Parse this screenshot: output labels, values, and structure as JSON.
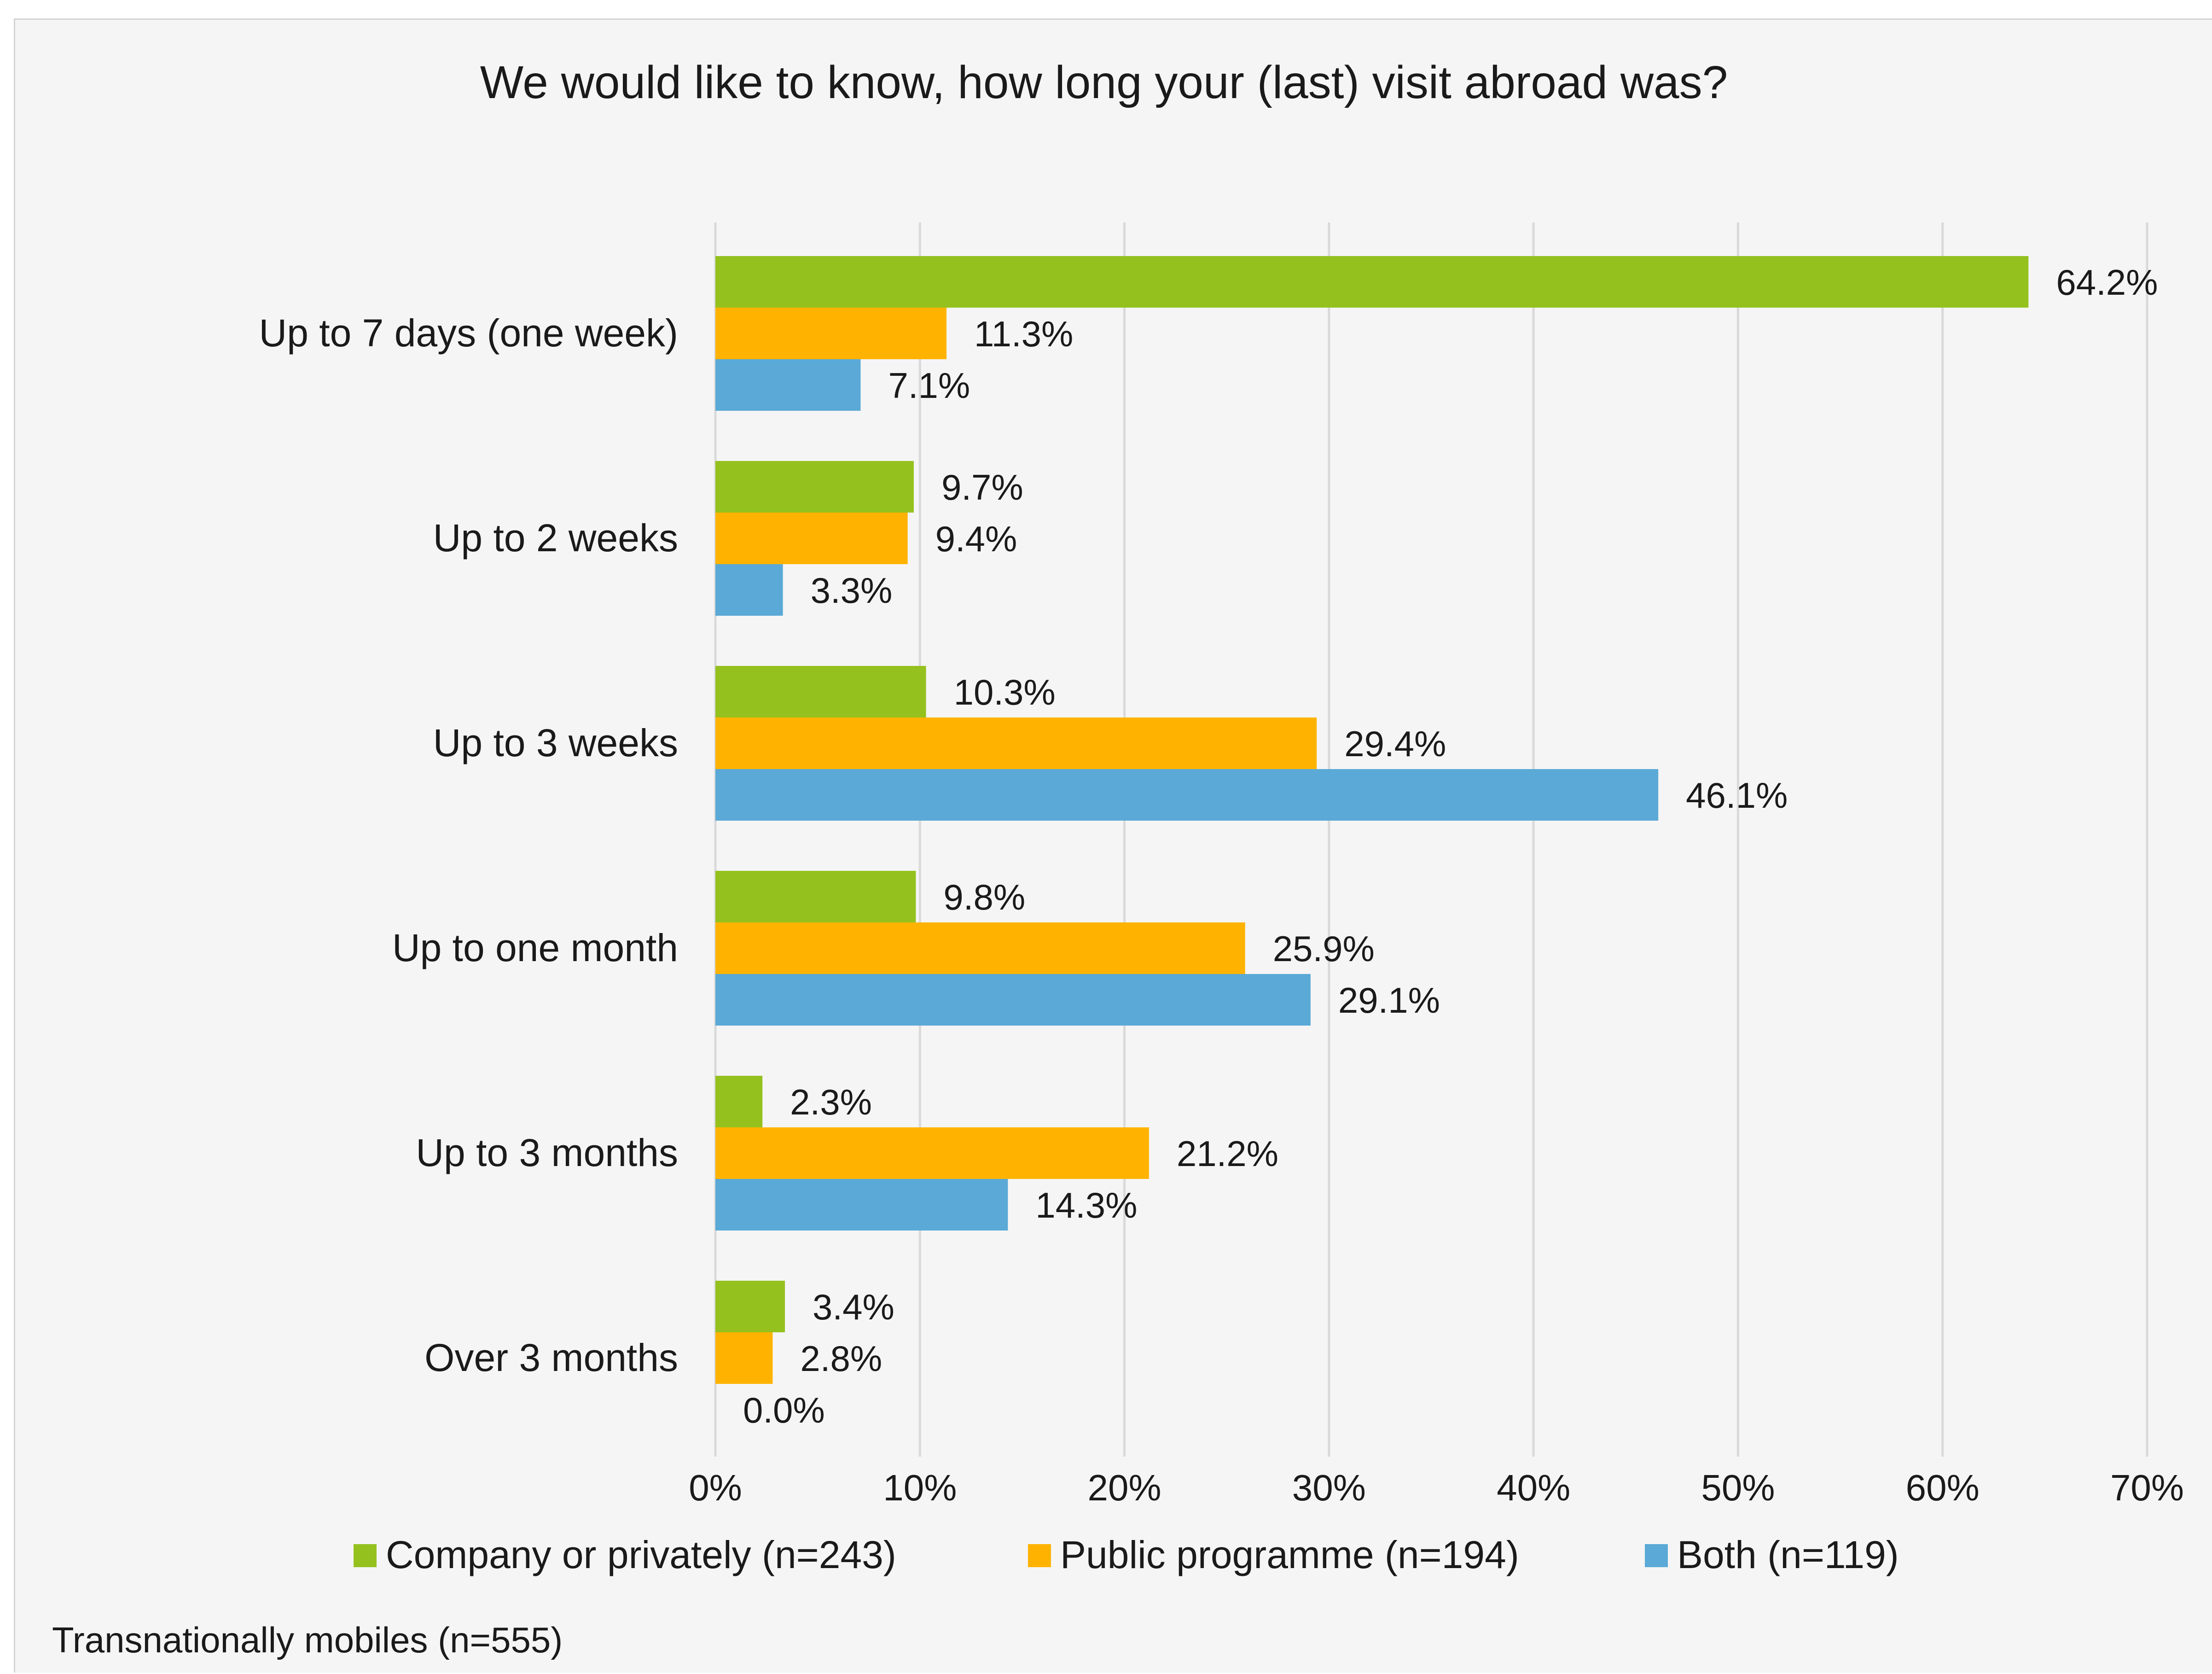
{
  "chart_data": {
    "type": "bar",
    "orientation": "horizontal",
    "title": "We would like to know, how long your (last) visit abroad was?",
    "categories": [
      "Up to 7 days (one week)",
      "Up to 2 weeks",
      "Up to 3 weeks",
      "Up to one month",
      "Up to 3 months",
      "Over 3 months"
    ],
    "series": [
      {
        "name": "Company or privately (n=243)",
        "color": "#95c11f",
        "values": [
          64.2,
          9.7,
          10.3,
          9.8,
          2.3,
          3.4
        ],
        "labels": [
          "64.2%",
          "9.7%",
          "10.3%",
          "9.8%",
          "2.3%",
          "3.4%"
        ]
      },
      {
        "name": "Public programme (n=194)",
        "color": "#ffb300",
        "values": [
          11.3,
          9.4,
          29.4,
          25.9,
          21.2,
          2.8
        ],
        "labels": [
          "11.3%",
          "9.4%",
          "29.4%",
          "25.9%",
          "21.2%",
          "2.8%"
        ]
      },
      {
        "name": "Both (n=119)",
        "color": "#5aa9d6",
        "values": [
          7.1,
          3.3,
          46.1,
          29.1,
          14.3,
          0.0
        ],
        "labels": [
          "7.1%",
          "3.3%",
          "46.1%",
          "29.1%",
          "14.3%",
          "0.0%"
        ]
      }
    ],
    "xlim": [
      0,
      70
    ],
    "xticks": [
      "0%",
      "10%",
      "20%",
      "30%",
      "40%",
      "50%",
      "60%",
      "70%"
    ],
    "grid": "vertical",
    "legend": "bottom",
    "footnote": "Transnationally mobiles (n=555)"
  }
}
